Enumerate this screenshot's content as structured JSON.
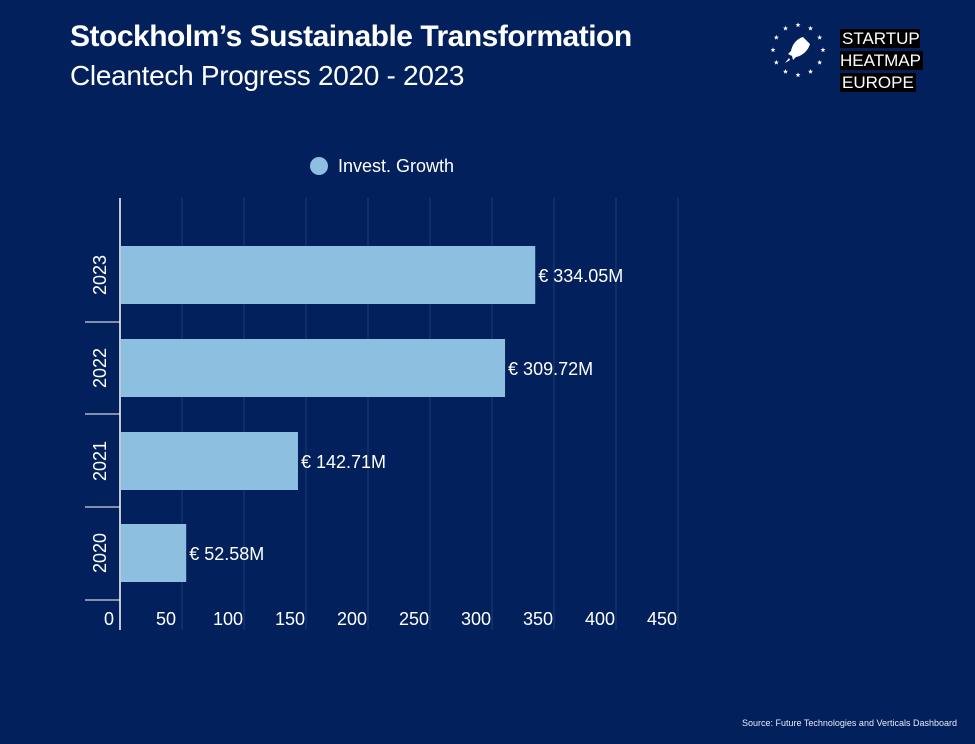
{
  "header": {
    "title": "Stockholm’s Sustainable Transformation",
    "subtitle": "Cleantech Progress  2020 - 2023"
  },
  "logo": {
    "icon": "rocket-icon",
    "line1": "STARTUP HEATMAP",
    "line2": "EUROPE"
  },
  "colors": {
    "background": "#02215C",
    "bar": "#8DBFE0",
    "grid": "#1E3A75",
    "text": "#FFFFFF"
  },
  "chart_data": {
    "type": "bar",
    "orientation": "horizontal",
    "categories": [
      "2023",
      "2022",
      "2021",
      "2020"
    ],
    "series": [
      {
        "name": "Invest. Growth",
        "values": [
          334.05,
          309.72,
          142.71,
          52.58
        ],
        "labels": [
          "€ 334.05M",
          "€ 309.72M",
          "€ 142.71M",
          "€ 52.58M"
        ]
      }
    ],
    "xlim": [
      0,
      450
    ],
    "xticks": [
      "0",
      "50",
      "100",
      "150",
      "200",
      "250",
      "300",
      "350",
      "400",
      "450"
    ],
    "grid": true,
    "legend_position": "top"
  },
  "source": "Source: Future Technologies and Verticals Dashboard"
}
